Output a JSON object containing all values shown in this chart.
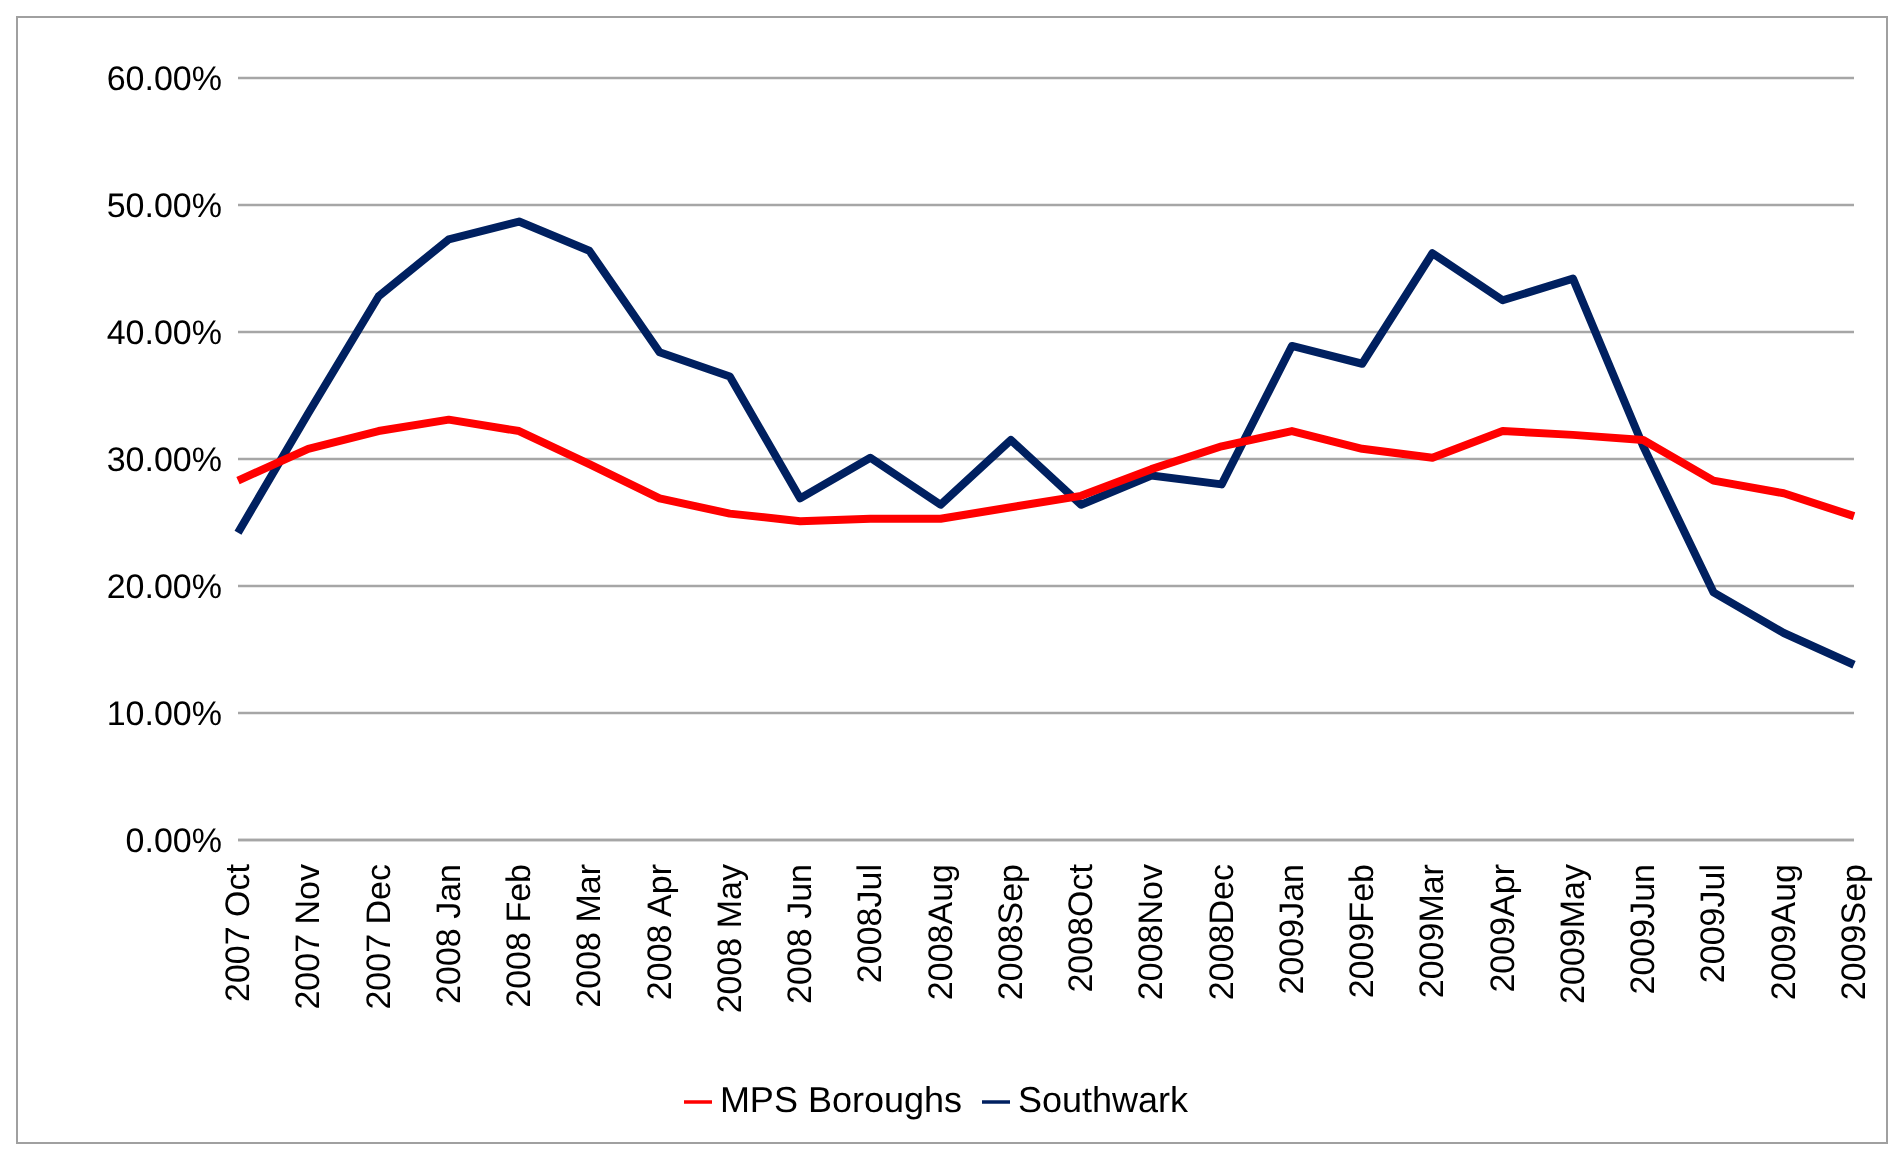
{
  "chart_data": {
    "type": "line",
    "categories": [
      "2007 Oct",
      "2007 Nov",
      "2007 Dec",
      "2008 Jan",
      "2008 Feb",
      "2008 Mar",
      "2008 Apr",
      "2008 May",
      "2008 Jun",
      "2008Jul",
      "2008Aug",
      "2008Sep",
      "2008Oct",
      "2008Nov",
      "2008Dec",
      "2009Jan",
      "2009Feb",
      "2009Mar",
      "2009Apr",
      "2009May",
      "2009Jun",
      "2009Jul",
      "2009Aug",
      "2009Sep"
    ],
    "series": [
      {
        "name": "Southwark",
        "color": "#002060",
        "values": [
          24.2,
          33.6,
          42.8,
          47.3,
          48.7,
          46.4,
          38.4,
          36.5,
          26.9,
          30.1,
          26.4,
          31.5,
          26.4,
          28.7,
          28.0,
          38.9,
          37.5,
          46.2,
          42.5,
          44.2,
          31.0,
          19.5,
          16.3,
          13.8
        ]
      },
      {
        "name": "MPS Boroughs",
        "color": "#ff0000",
        "values": [
          28.3,
          30.8,
          32.2,
          33.1,
          32.2,
          29.6,
          26.9,
          25.7,
          25.1,
          25.3,
          25.3,
          26.2,
          27.1,
          29.2,
          31.0,
          32.2,
          30.8,
          30.1,
          32.2,
          31.9,
          31.5,
          28.3,
          27.3,
          25.5
        ]
      }
    ],
    "ylim": [
      0,
      60
    ],
    "yticks": [
      {
        "value": 0,
        "label": "0.00%"
      },
      {
        "value": 10,
        "label": "10.00%"
      },
      {
        "value": 20,
        "label": "20.00%"
      },
      {
        "value": 30,
        "label": "30.00%"
      },
      {
        "value": 40,
        "label": "40.00%"
      },
      {
        "value": 50,
        "label": "50.00%"
      },
      {
        "value": 60,
        "label": "60.00%"
      }
    ],
    "grid": "y",
    "legend": "bottom",
    "marker": "none",
    "line_style": "solid"
  }
}
